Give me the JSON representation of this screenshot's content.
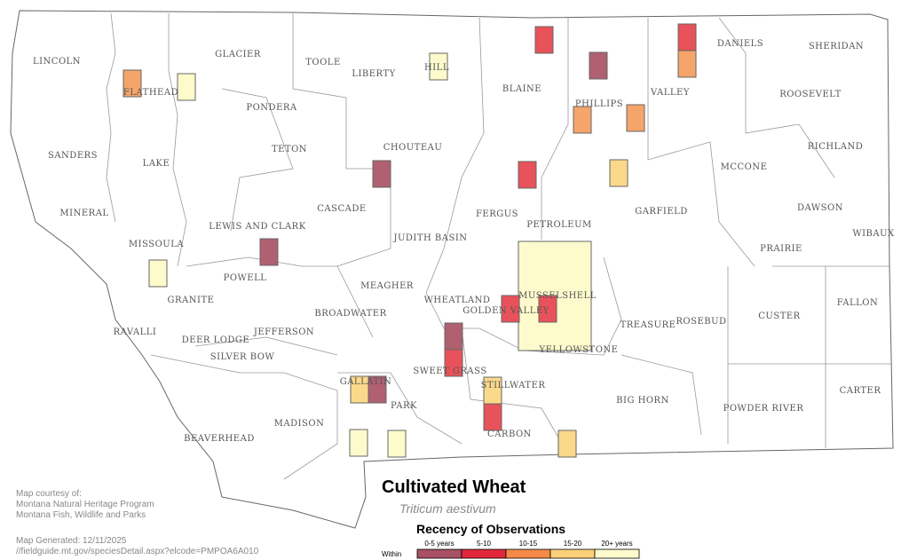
{
  "map": {
    "counties": [
      "LINCOLN",
      "FLATHEAD",
      "GLACIER",
      "TOOLE",
      "LIBERTY",
      "HILL",
      "BLAINE",
      "PHILLIPS",
      "VALLEY",
      "DANIELS",
      "SHERIDAN",
      "ROOSEVELT",
      "PONDERA",
      "SANDERS",
      "LAKE",
      "TETON",
      "CHOUTEAU",
      "RICHLAND",
      "MCCONE",
      "MINERAL",
      "CASCADE",
      "FERGUS",
      "PETROLEUM",
      "GARFIELD",
      "DAWSON",
      "MISSOULA",
      "LEWIS AND CLARK",
      "JUDITH BASIN",
      "PRAIRIE",
      "WIBAUX",
      "POWELL",
      "MEAGHER",
      "WHEATLAND",
      "MUSSELSHELL",
      "GOLDEN VALLEY",
      "GRANITE",
      "BROADWATER",
      "FALLON",
      "CUSTER",
      "ROSEBUD",
      "TREASURE",
      "RAVALLI",
      "JEFFERSON",
      "DEER LODGE",
      "SILVER BOW",
      "YELLOWSTONE",
      "SWEET GRASS",
      "STILLWATER",
      "GALLATIN",
      "PARK",
      "CARTER",
      "BIG HORN",
      "POWDER RIVER",
      "MADISON",
      "CARBON",
      "BEAVERHEAD"
    ]
  },
  "title": "Cultivated Wheat",
  "subtitle": "Triticum aestivum",
  "credits": [
    "Map courtesy of:",
    "Montana Natural Heritage Program",
    "Montana Fish, Wildlife and Parks"
  ],
  "generated": "Map Generated: 12/11/2025",
  "url": "//fieldguide.mt.gov/speciesDetail.aspx?elcode=PMPOA6A010",
  "legend": {
    "title": "Recency of Observations",
    "within": "Within",
    "bins": [
      "0-5 years",
      "5-10",
      "10-15",
      "15-20",
      "20+ years"
    ],
    "colors": [
      "#a85064",
      "#e0283a",
      "#f58a4a",
      "#fbd07a",
      "#fdfbcc"
    ]
  }
}
